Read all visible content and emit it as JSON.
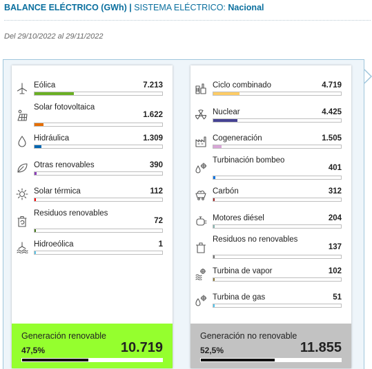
{
  "header": {
    "title_bold": "BALANCE ELÉCTRICO (GWh)",
    "separator": "|",
    "system_label": "SISTEMA ELÉCTRICO:",
    "system_value": "Nacional"
  },
  "date_range": "Del 29/10/2022 al 29/11/2022",
  "renewable": {
    "items": [
      {
        "label": "Eólica",
        "value": "7.213",
        "color": "#6ab023",
        "icon": "wind-turbine-icon"
      },
      {
        "label": "Solar fotovoltaica",
        "value": "1.622",
        "color": "#e66e00",
        "icon": "solar-panel-icon"
      },
      {
        "label": "Hidráulica",
        "value": "1.309",
        "color": "#0066b1",
        "icon": "water-drop-icon"
      },
      {
        "label": "Otras renovables",
        "value": "390",
        "color": "#8b3fb7",
        "icon": "leaf-icon"
      },
      {
        "label": "Solar térmica",
        "value": "112",
        "color": "#ff0000",
        "icon": "sun-icon"
      },
      {
        "label": "Residuos renovables",
        "value": "72",
        "color": "#467a1e",
        "icon": "recycle-bin-icon"
      },
      {
        "label": "Hidroeólica",
        "value": "1",
        "color": "#5bc6e8",
        "icon": "hydro-wind-icon"
      }
    ],
    "total_label": "Generación renovable",
    "total_pct": "47,5%",
    "total_value": "10.719",
    "total_color": "#95ff2e"
  },
  "nonrenewable": {
    "items": [
      {
        "label": "Ciclo combinado",
        "value": "4.719",
        "color": "#ffcc66",
        "icon": "combined-cycle-icon"
      },
      {
        "label": "Nuclear",
        "value": "4.425",
        "color": "#464394",
        "icon": "nuclear-icon"
      },
      {
        "label": "Cogeneración",
        "value": "1.505",
        "color": "#d9a6d8",
        "icon": "factory-icon"
      },
      {
        "label": "Turbinación bombeo",
        "value": "401",
        "color": "#0f74e0",
        "icon": "pump-turbine-icon"
      },
      {
        "label": "Carbón",
        "value": "312",
        "color": "#a52a2a",
        "icon": "coal-cart-icon"
      },
      {
        "label": "Motores diésel",
        "value": "204",
        "color": "#86b5b0",
        "icon": "diesel-engine-icon"
      },
      {
        "label": "Residuos no renovables",
        "value": "137",
        "color": "#6e6e6e",
        "icon": "trash-bin-icon"
      },
      {
        "label": "Turbina de vapor",
        "value": "102",
        "color": "#8f7a3a",
        "icon": "steam-turbine-icon"
      },
      {
        "label": "Turbina de gas",
        "value": "51",
        "color": "#4fc6f0",
        "icon": "gas-turbine-icon"
      }
    ],
    "total_label": "Generación no renovable",
    "total_pct": "52,5%",
    "total_value": "11.855",
    "total_color": "#c2c2c2"
  }
}
